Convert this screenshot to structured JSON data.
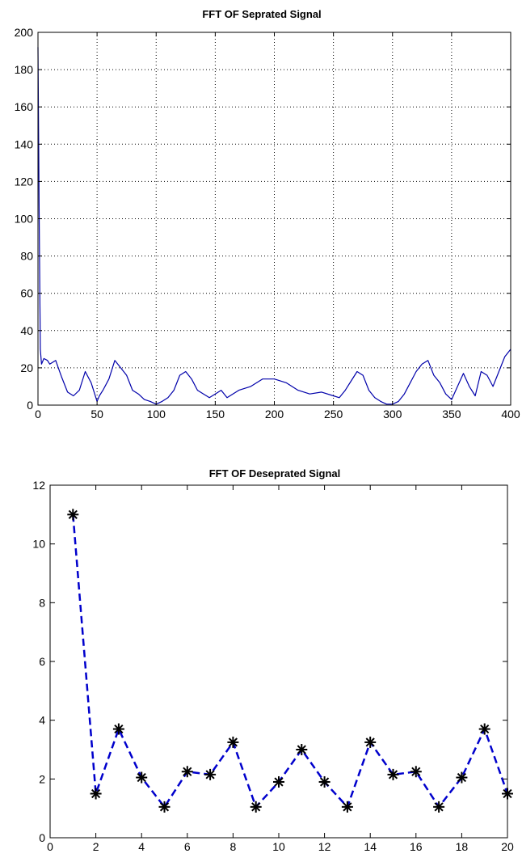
{
  "chart_data": [
    {
      "type": "line",
      "title": "FFT OF Seprated Signal",
      "xlabel": "",
      "ylabel": "",
      "xlim": [
        0,
        400
      ],
      "ylim": [
        0,
        200
      ],
      "xticks": [
        0,
        50,
        100,
        150,
        200,
        250,
        300,
        350,
        400
      ],
      "yticks": [
        0,
        20,
        40,
        60,
        80,
        100,
        120,
        140,
        160,
        180,
        200
      ],
      "grid": true,
      "line_color": "#0000aa",
      "series": [
        {
          "style": "solid",
          "x": [
            0,
            1,
            2,
            3,
            5,
            8,
            10,
            15,
            20,
            25,
            30,
            35,
            40,
            45,
            48,
            50,
            52,
            55,
            60,
            65,
            70,
            75,
            80,
            85,
            90,
            95,
            100,
            105,
            110,
            115,
            120,
            125,
            130,
            135,
            140,
            145,
            150,
            155,
            160,
            170,
            180,
            190,
            200,
            210,
            220,
            230,
            240,
            250,
            255,
            260,
            265,
            270,
            275,
            280,
            285,
            290,
            295,
            300,
            305,
            310,
            315,
            320,
            325,
            330,
            335,
            340,
            345,
            350,
            355,
            360,
            365,
            370,
            375,
            380,
            385,
            390,
            395,
            400
          ],
          "y": [
            192,
            100,
            30,
            22,
            25,
            24,
            22,
            24,
            15,
            7,
            5,
            8,
            18,
            12,
            6,
            2,
            5,
            8,
            14,
            24,
            20,
            16,
            8,
            6,
            3,
            2,
            0.5,
            2,
            4,
            8,
            16,
            18,
            14,
            8,
            6,
            4,
            6,
            8,
            4,
            8,
            10,
            14,
            14,
            12,
            8,
            6,
            7,
            5,
            4,
            8,
            13,
            18,
            16,
            8,
            4,
            2,
            0.5,
            0.5,
            2,
            6,
            12,
            18,
            22,
            24,
            16,
            12,
            6,
            3,
            10,
            17,
            10,
            5,
            18,
            16,
            10,
            18,
            26,
            30
          ]
        }
      ]
    },
    {
      "type": "line",
      "title": "FFT OF Deseprated Signal",
      "xlabel": "",
      "ylabel": "",
      "xlim": [
        0,
        20
      ],
      "ylim": [
        0,
        12
      ],
      "xticks": [
        0,
        2,
        4,
        6,
        8,
        10,
        12,
        14,
        16,
        18,
        20
      ],
      "yticks": [
        0,
        2,
        4,
        6,
        8,
        10,
        12
      ],
      "grid": false,
      "line_color": "#0000cc",
      "marker": "asterisk",
      "series": [
        {
          "style": "dashed",
          "x": [
            1,
            2,
            3,
            4,
            5,
            6,
            7,
            8,
            9,
            10,
            11,
            12,
            13,
            14,
            15,
            16,
            17,
            18,
            19,
            20
          ],
          "y": [
            11.0,
            1.5,
            3.7,
            2.05,
            1.05,
            2.25,
            2.15,
            3.25,
            1.05,
            1.9,
            3.0,
            1.9,
            1.05,
            3.25,
            2.15,
            2.25,
            1.05,
            2.05,
            3.7,
            1.5
          ]
        }
      ]
    }
  ]
}
